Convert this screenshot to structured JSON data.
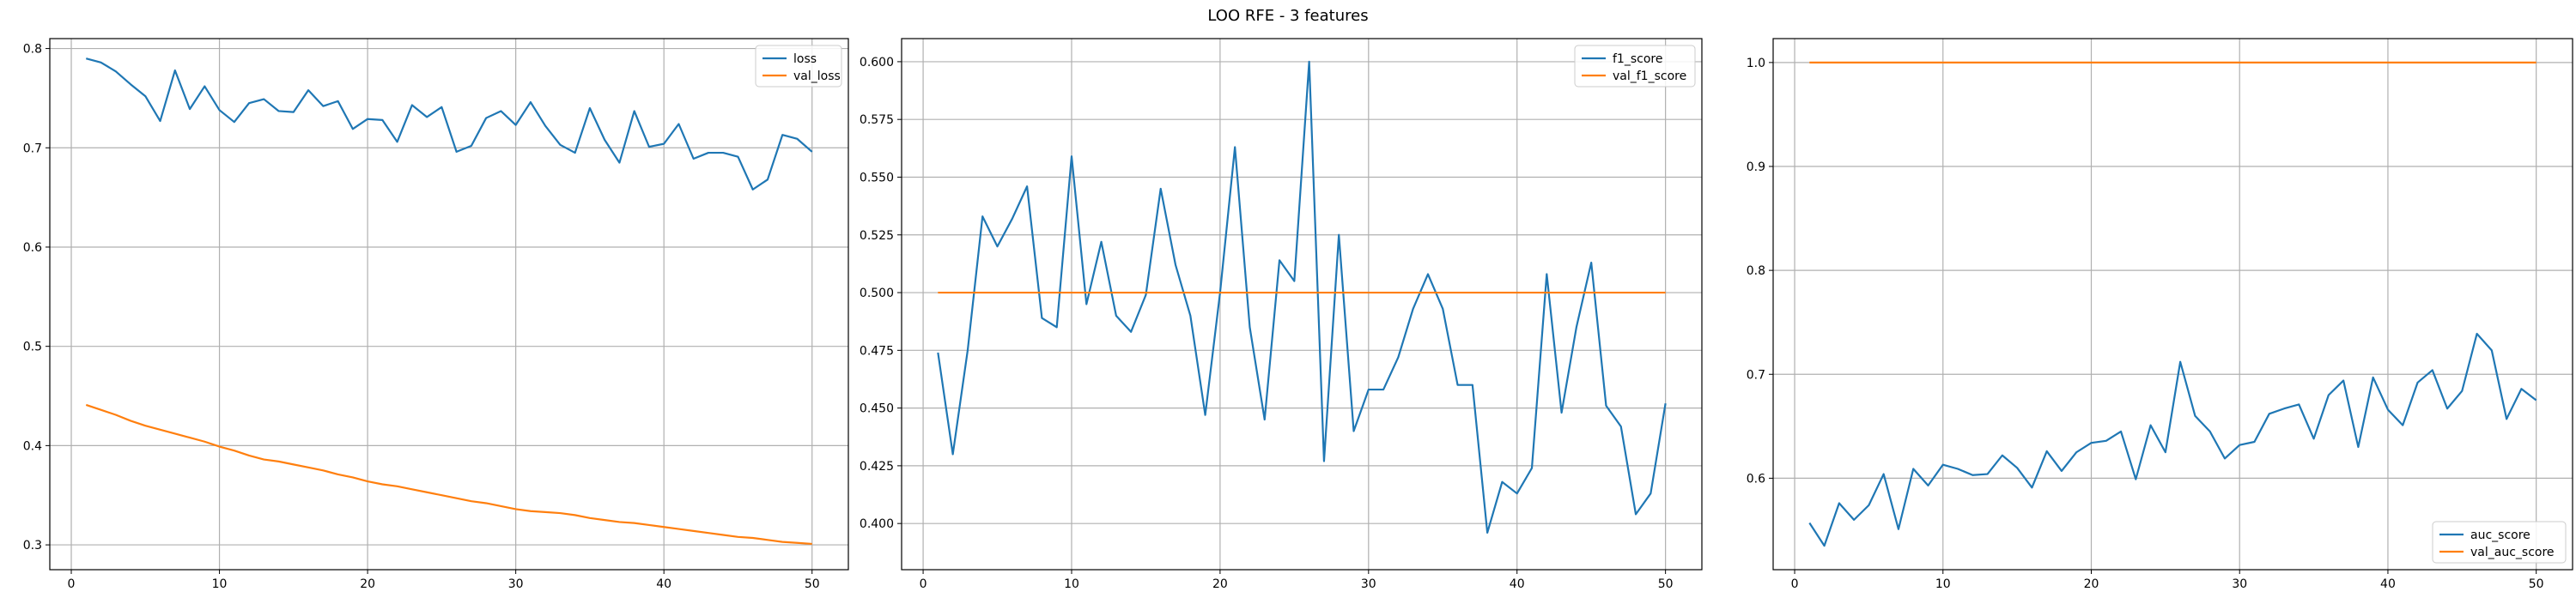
{
  "figure": {
    "title": "LOO RFE - 3 features"
  },
  "colors": {
    "series0": "#1f77b4",
    "series1": "#ff7f0e",
    "grid": "#b0b0b0",
    "axis": "#000000"
  },
  "chart_data": [
    {
      "type": "line",
      "grid": true,
      "legend_position": "top-right",
      "xlim": [
        -1.45,
        52.45
      ],
      "ylim": [
        0.275,
        0.81
      ],
      "xticks": [
        0,
        10,
        20,
        30,
        40,
        50
      ],
      "yticks": [
        0.3,
        0.4,
        0.5,
        0.6,
        0.7,
        0.8
      ],
      "ytick_decimals": 1,
      "x": [
        1,
        2,
        3,
        4,
        5,
        6,
        7,
        8,
        9,
        10,
        11,
        12,
        13,
        14,
        15,
        16,
        17,
        18,
        19,
        20,
        21,
        22,
        23,
        24,
        25,
        26,
        27,
        28,
        29,
        30,
        31,
        32,
        33,
        34,
        35,
        36,
        37,
        38,
        39,
        40,
        41,
        42,
        43,
        44,
        45,
        46,
        47,
        48,
        49,
        50
      ],
      "series": [
        {
          "name": "loss",
          "values": [
            0.79,
            0.786,
            0.777,
            0.764,
            0.752,
            0.727,
            0.778,
            0.739,
            0.762,
            0.738,
            0.726,
            0.745,
            0.749,
            0.737,
            0.736,
            0.758,
            0.742,
            0.747,
            0.719,
            0.729,
            0.728,
            0.706,
            0.743,
            0.731,
            0.741,
            0.696,
            0.702,
            0.73,
            0.737,
            0.723,
            0.746,
            0.722,
            0.703,
            0.695,
            0.74,
            0.708,
            0.685,
            0.737,
            0.701,
            0.704,
            0.724,
            0.689,
            0.695,
            0.695,
            0.691,
            0.658,
            0.668,
            0.713,
            0.709,
            0.696
          ]
        },
        {
          "name": "val_loss",
          "values": [
            0.441,
            0.436,
            0.431,
            0.425,
            0.42,
            0.416,
            0.412,
            0.408,
            0.404,
            0.399,
            0.395,
            0.39,
            0.386,
            0.384,
            0.381,
            0.378,
            0.375,
            0.371,
            0.368,
            0.364,
            0.361,
            0.359,
            0.356,
            0.353,
            0.35,
            0.347,
            0.344,
            0.342,
            0.339,
            0.336,
            0.334,
            0.333,
            0.332,
            0.33,
            0.327,
            0.325,
            0.323,
            0.322,
            0.32,
            0.318,
            0.316,
            0.314,
            0.312,
            0.31,
            0.308,
            0.307,
            0.305,
            0.303,
            0.302,
            0.301
          ]
        }
      ]
    },
    {
      "type": "line",
      "grid": true,
      "legend_position": "top-right",
      "xlim": [
        -1.45,
        52.45
      ],
      "ylim": [
        0.38,
        0.61
      ],
      "xticks": [
        0,
        10,
        20,
        30,
        40,
        50
      ],
      "yticks": [
        0.4,
        0.425,
        0.45,
        0.475,
        0.5,
        0.525,
        0.55,
        0.575,
        0.6
      ],
      "ytick_decimals": 3,
      "x": [
        1,
        2,
        3,
        4,
        5,
        6,
        7,
        8,
        9,
        10,
        11,
        12,
        13,
        14,
        15,
        16,
        17,
        18,
        19,
        20,
        21,
        22,
        23,
        24,
        25,
        26,
        27,
        28,
        29,
        30,
        31,
        32,
        33,
        34,
        35,
        36,
        37,
        38,
        39,
        40,
        41,
        42,
        43,
        44,
        45,
        46,
        47,
        48,
        49,
        50
      ],
      "series": [
        {
          "name": "f1_score",
          "values": [
            0.474,
            0.43,
            0.475,
            0.533,
            0.52,
            0.532,
            0.546,
            0.489,
            0.485,
            0.559,
            0.495,
            0.522,
            0.49,
            0.483,
            0.499,
            0.545,
            0.512,
            0.49,
            0.447,
            0.5,
            0.563,
            0.485,
            0.445,
            0.514,
            0.505,
            0.6,
            0.427,
            0.525,
            0.44,
            0.458,
            0.458,
            0.472,
            0.493,
            0.508,
            0.493,
            0.46,
            0.46,
            0.396,
            0.418,
            0.413,
            0.424,
            0.508,
            0.448,
            0.485,
            0.513,
            0.451,
            0.442,
            0.404,
            0.413,
            0.452
          ]
        },
        {
          "name": "val_f1_score",
          "values": [
            0.5,
            0.5,
            0.5,
            0.5,
            0.5,
            0.5,
            0.5,
            0.5,
            0.5,
            0.5,
            0.5,
            0.5,
            0.5,
            0.5,
            0.5,
            0.5,
            0.5,
            0.5,
            0.5,
            0.5,
            0.5,
            0.5,
            0.5,
            0.5,
            0.5,
            0.5,
            0.5,
            0.5,
            0.5,
            0.5,
            0.5,
            0.5,
            0.5,
            0.5,
            0.5,
            0.5,
            0.5,
            0.5,
            0.5,
            0.5,
            0.5,
            0.5,
            0.5,
            0.5,
            0.5,
            0.5,
            0.5,
            0.5,
            0.5,
            0.5
          ]
        }
      ]
    },
    {
      "type": "line",
      "grid": true,
      "legend_position": "bottom-right",
      "xlim": [
        -1.45,
        52.45
      ],
      "ylim": [
        0.512,
        1.023
      ],
      "xticks": [
        0,
        10,
        20,
        30,
        40,
        50
      ],
      "yticks": [
        0.6,
        0.7,
        0.8,
        0.9,
        1.0
      ],
      "ytick_decimals": 1,
      "x": [
        1,
        2,
        3,
        4,
        5,
        6,
        7,
        8,
        9,
        10,
        11,
        12,
        13,
        14,
        15,
        16,
        17,
        18,
        19,
        20,
        21,
        22,
        23,
        24,
        25,
        26,
        27,
        28,
        29,
        30,
        31,
        32,
        33,
        34,
        35,
        36,
        37,
        38,
        39,
        40,
        41,
        42,
        43,
        44,
        45,
        46,
        47,
        48,
        49,
        50
      ],
      "series": [
        {
          "name": "auc_score",
          "values": [
            0.557,
            0.535,
            0.576,
            0.56,
            0.574,
            0.604,
            0.551,
            0.609,
            0.593,
            0.613,
            0.609,
            0.603,
            0.604,
            0.622,
            0.61,
            0.591,
            0.626,
            0.607,
            0.625,
            0.634,
            0.636,
            0.645,
            0.599,
            0.651,
            0.625,
            0.712,
            0.66,
            0.645,
            0.619,
            0.632,
            0.635,
            0.662,
            0.667,
            0.671,
            0.638,
            0.68,
            0.694,
            0.63,
            0.697,
            0.666,
            0.651,
            0.692,
            0.704,
            0.667,
            0.684,
            0.739,
            0.723,
            0.657,
            0.686,
            0.675
          ]
        },
        {
          "name": "val_auc_score",
          "values": [
            1.0,
            1.0,
            1.0,
            1.0,
            1.0,
            1.0,
            1.0,
            1.0,
            1.0,
            1.0,
            1.0,
            1.0,
            1.0,
            1.0,
            1.0,
            1.0,
            1.0,
            1.0,
            1.0,
            1.0,
            1.0,
            1.0,
            1.0,
            1.0,
            1.0,
            1.0,
            1.0,
            1.0,
            1.0,
            1.0,
            1.0,
            1.0,
            1.0,
            1.0,
            1.0,
            1.0,
            1.0,
            1.0,
            1.0,
            1.0,
            1.0,
            1.0,
            1.0,
            1.0,
            1.0,
            1.0,
            1.0,
            1.0,
            1.0,
            1.0
          ]
        }
      ]
    }
  ]
}
